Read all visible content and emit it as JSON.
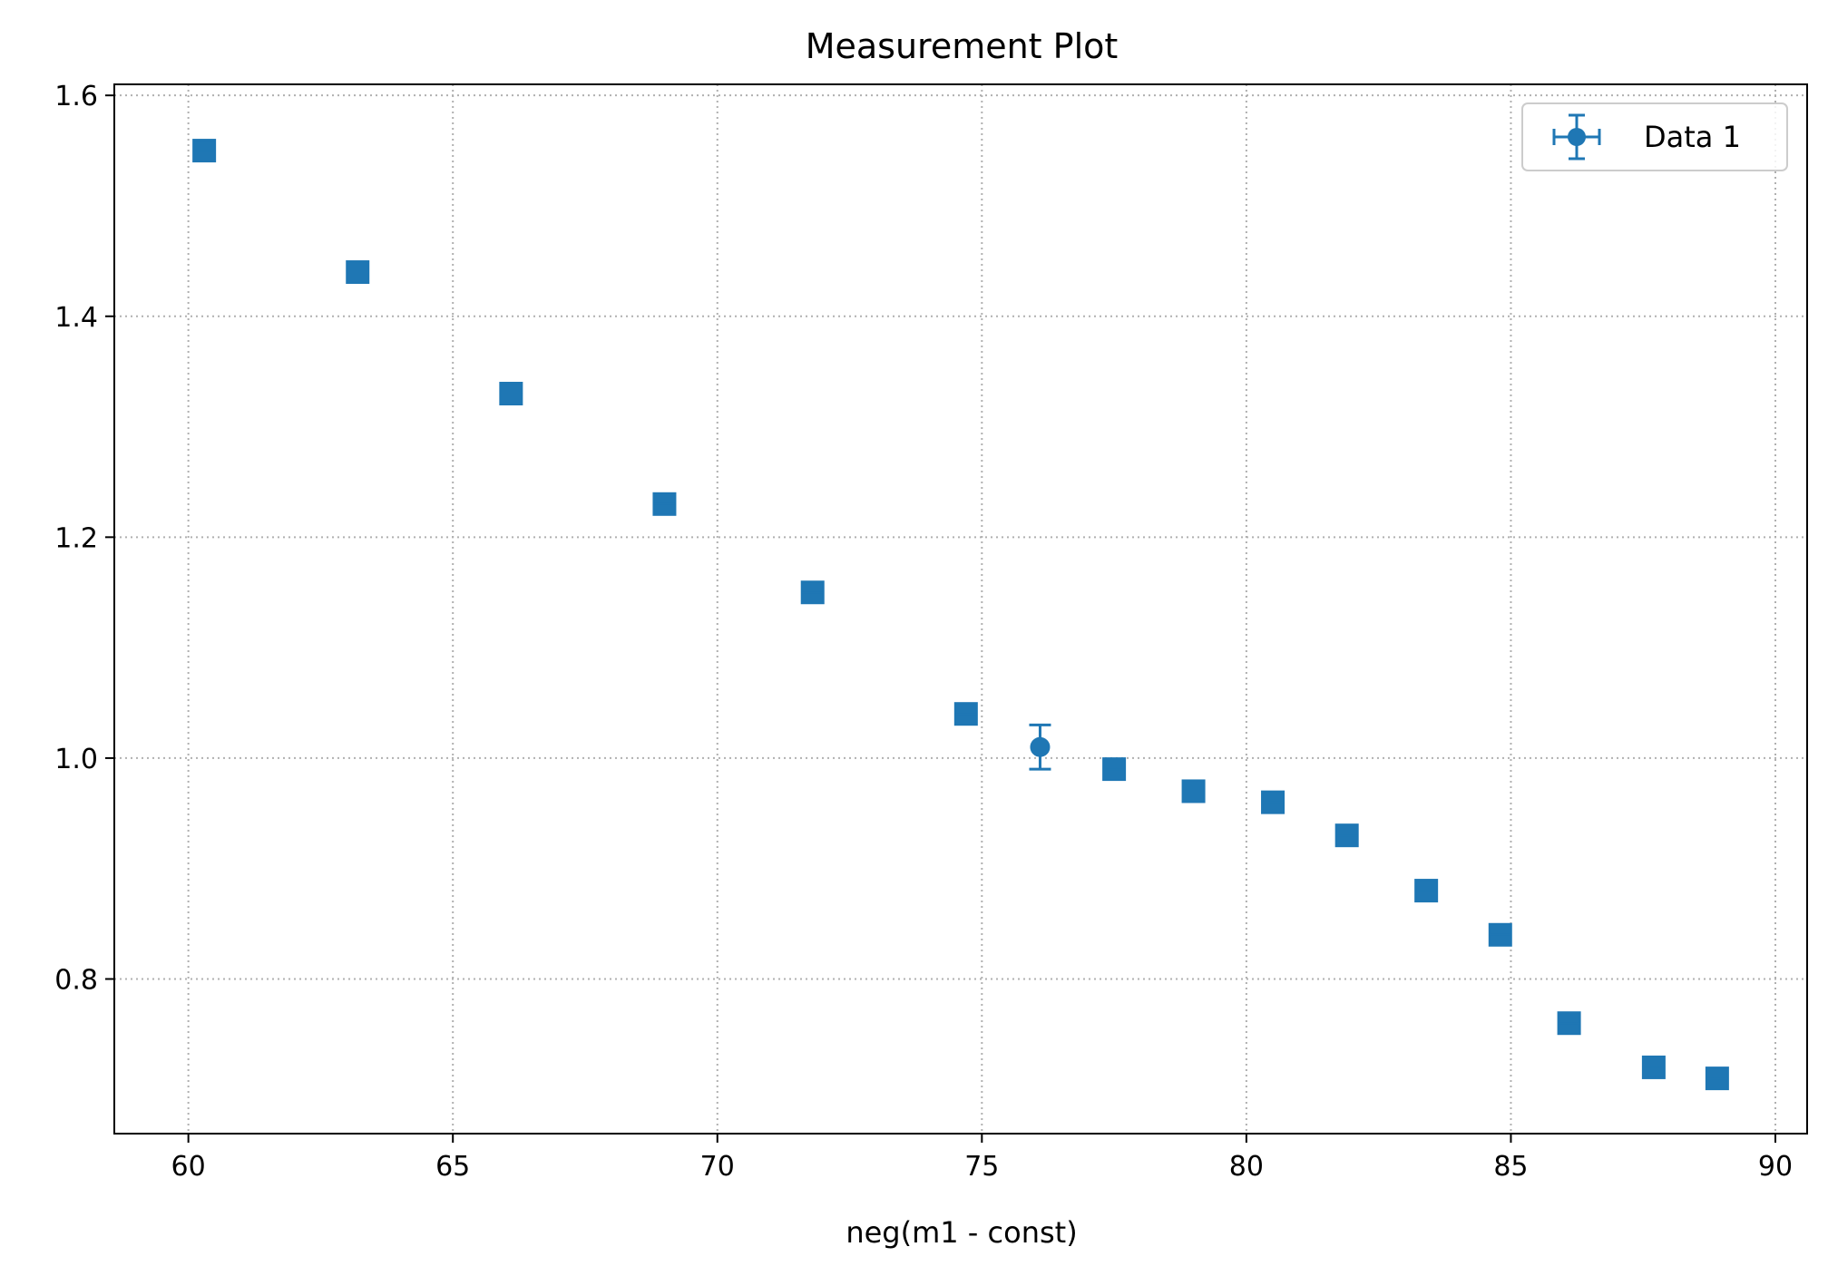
{
  "colors": {
    "series": "#1f77b4",
    "grid": "#b0b0b0",
    "axis": "#000000",
    "background": "#ffffff",
    "legend_border": "#cccccc"
  },
  "chart_data": {
    "type": "scatter",
    "title": "Measurement Plot",
    "xlabel": "neg(m1 - const)",
    "ylabel": "",
    "xlim": [
      58.6,
      90.6
    ],
    "ylim": [
      0.66,
      1.61
    ],
    "xticks": [
      60,
      65,
      70,
      75,
      80,
      85,
      90
    ],
    "yticks": [
      0.8,
      1.0,
      1.2,
      1.4,
      1.6
    ],
    "xtick_labels": [
      "60",
      "65",
      "70",
      "75",
      "80",
      "85",
      "90"
    ],
    "ytick_labels": [
      "0.8",
      "1.0",
      "1.2",
      "1.4",
      "1.6"
    ],
    "grid": true,
    "legend_position": "top-right",
    "series": [
      {
        "name": "Data 1",
        "marker": "square",
        "x": [
          60.3,
          63.2,
          66.1,
          69.0,
          71.8,
          74.7,
          76.1,
          77.5,
          79.0,
          80.5,
          81.9,
          83.4,
          84.8,
          86.1,
          87.7,
          88.9
        ],
        "y": [
          1.55,
          1.44,
          1.33,
          1.23,
          1.15,
          1.04,
          1.01,
          0.99,
          0.97,
          0.96,
          0.93,
          0.88,
          0.84,
          0.76,
          0.72,
          0.71
        ],
        "yerr": [
          0.005,
          0.005,
          0.005,
          0.005,
          0.005,
          0.005,
          0.02,
          0.005,
          0.005,
          0.005,
          0.005,
          0.005,
          0.005,
          0.005,
          0.005,
          0.005
        ],
        "xerr": [
          0.1,
          0.1,
          0.1,
          0.1,
          0.1,
          0.1,
          0.1,
          0.1,
          0.1,
          0.1,
          0.1,
          0.1,
          0.1,
          0.1,
          0.1,
          0.1
        ]
      }
    ]
  }
}
